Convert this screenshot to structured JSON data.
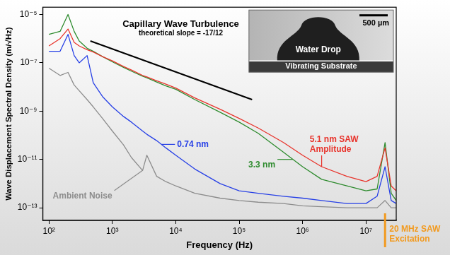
{
  "chart_data": {
    "type": "line",
    "x_label": "Frequency (Hz)",
    "y_label": "Wave Displacement Spectral Density (m/√Hz)",
    "log": true,
    "grid": false,
    "xlim": [
      80,
      30000000
    ],
    "ylim": [
      3e-14,
      2e-05
    ],
    "xticks": [
      {
        "value": 100,
        "label": "10²"
      },
      {
        "value": 1000,
        "label": "10³"
      },
      {
        "value": 10000,
        "label": "10⁴"
      },
      {
        "value": 100000,
        "label": "10⁵"
      },
      {
        "value": 1000000,
        "label": "10⁶"
      },
      {
        "value": 10000000,
        "label": "10⁷"
      }
    ],
    "yticks": [
      {
        "value": 1e-13,
        "label": "10⁻¹³"
      },
      {
        "value": 1e-11,
        "label": "10⁻¹¹"
      },
      {
        "value": 1e-09,
        "label": "10⁻⁹"
      },
      {
        "value": 1e-07,
        "label": "10⁻⁷"
      },
      {
        "value": 1e-05,
        "label": "10⁻⁵"
      }
    ],
    "x": [
      100,
      150,
      200,
      250,
      300,
      400,
      500,
      700,
      1000,
      1500,
      2000,
      3000,
      3500,
      5000,
      7000,
      10000,
      20000,
      50000,
      100000,
      200000,
      500000,
      1000000,
      2000000,
      5000000,
      10000000,
      15000000,
      20000000,
      25000000,
      30000000
    ],
    "series": [
      {
        "name": "5.1 nm SAW Amplitude",
        "color": "#e8342c",
        "values": [
          5e-07,
          1e-06,
          2.5e-06,
          7e-07,
          5e-07,
          3.5e-07,
          2.8e-07,
          1.8e-07,
          1.2e-07,
          7e-08,
          5e-08,
          3e-08,
          2.6e-08,
          1.8e-08,
          1.3e-08,
          9e-09,
          3.5e-09,
          1.2e-09,
          5e-10,
          2e-10,
          5e-11,
          1.5e-11,
          5e-12,
          2e-12,
          1.2e-12,
          2e-12,
          3e-11,
          8e-13,
          5e-13
        ],
        "label": {
          "x": 1300000,
          "y": 4e-11,
          "point": [
            2000000,
            5e-12
          ]
        }
      },
      {
        "name": "3.3 nm",
        "color": "#2e8b2e",
        "values": [
          1.5e-06,
          2e-06,
          1e-05,
          2e-06,
          8e-07,
          4e-07,
          3e-07,
          1.8e-07,
          1.1e-07,
          6.5e-08,
          4.5e-08,
          2.8e-08,
          2.4e-08,
          1.6e-08,
          1.1e-08,
          8e-09,
          3e-09,
          9e-10,
          3.5e-10,
          1.2e-10,
          2e-11,
          5e-12,
          1.5e-12,
          8e-13,
          5e-13,
          6e-13,
          5e-11,
          4e-13,
          2e-13
        ],
        "label": {
          "x": 140000,
          "y": 6e-12,
          "point": [
            700000,
            1e-11
          ]
        }
      },
      {
        "name": "0.74 nm",
        "color": "#2740e6",
        "values": [
          3e-07,
          3e-07,
          1.5e-06,
          2e-07,
          1e-07,
          2e-07,
          1.5e-08,
          4e-09,
          1.5e-09,
          6e-10,
          3.5e-10,
          1.5e-10,
          1.1e-10,
          6e-11,
          3e-11,
          1.5e-11,
          4e-12,
          1e-12,
          5e-13,
          4e-13,
          3e-13,
          2.5e-13,
          2e-13,
          1.5e-13,
          1.5e-13,
          3e-13,
          5e-12,
          2e-13,
          1.5e-13
        ],
        "label": {
          "x": 10500,
          "y": 4e-11,
          "point": [
            6000,
            4.2e-11
          ]
        }
      },
      {
        "name": "Ambient Noise",
        "color": "#8c8c8c",
        "values": [
          6e-08,
          3e-08,
          4e-08,
          1.2e-08,
          7e-09,
          3e-09,
          1.5e-09,
          5e-10,
          1.5e-10,
          4e-11,
          1.2e-11,
          3.5e-12,
          1.5e-11,
          2e-12,
          1.2e-12,
          8e-13,
          4e-13,
          2.5e-13,
          2e-13,
          1.7e-13,
          1.5e-13,
          1.2e-13,
          1.1e-13,
          1e-13,
          1e-13,
          1e-13,
          2e-13,
          1e-13,
          1e-13
        ],
        "label": {
          "x": 115,
          "y": 3e-13,
          "point": [
            3000,
            3.5e-12
          ]
        }
      }
    ],
    "reference_line": {
      "text": "Capillary Wave Turbulence",
      "subtext": "theoretical slope = -17/12",
      "color": "#000000",
      "x": [
        450,
        160000
      ],
      "y": [
        8e-07,
        3e-09
      ],
      "label_at": [
        12000,
        4e-06
      ]
    },
    "excitation": {
      "text": "20 MHz SAW Excitation",
      "x": 20000000,
      "color": "#f29a1f"
    },
    "inset": {
      "scale_bar": "500 µm",
      "drop_label": "Water Drop",
      "substrate_label": "Vibrating Substrate"
    }
  }
}
